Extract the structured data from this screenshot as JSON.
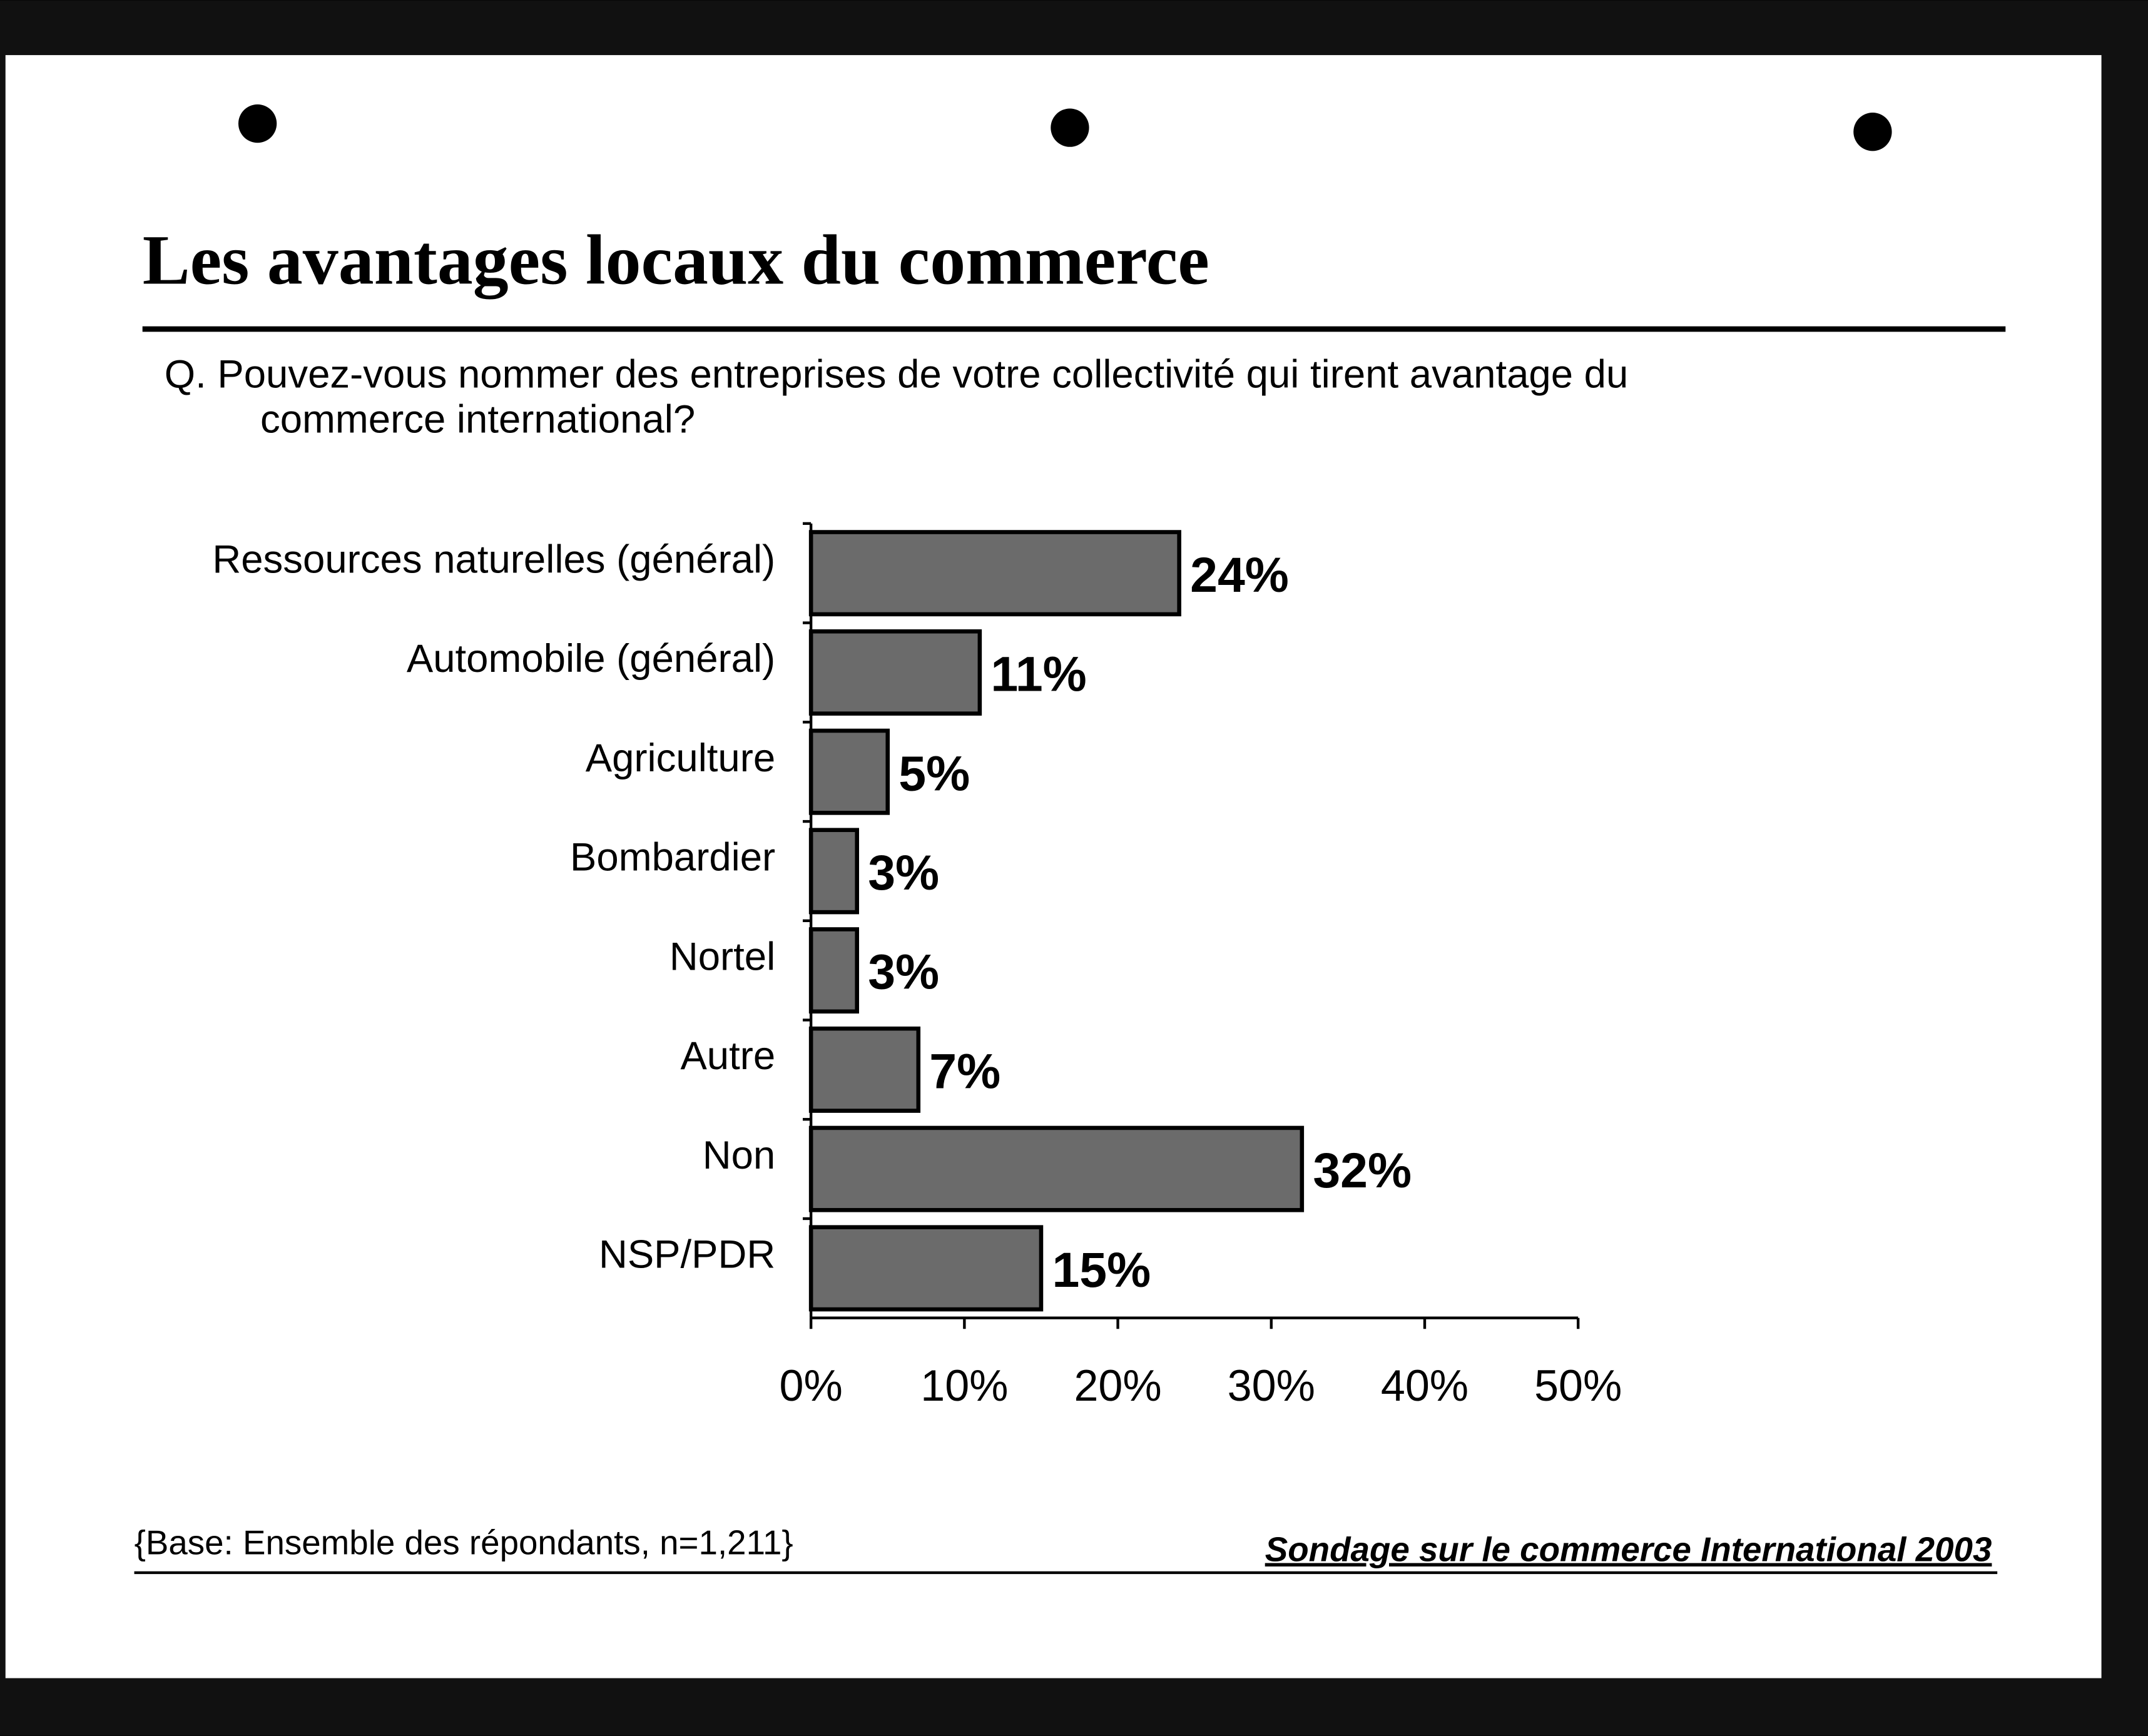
{
  "chart_data": {
    "type": "bar",
    "orientation": "horizontal",
    "title": "Les avantages locaux du commerce",
    "question": [
      "Q. Pouvez-vous nommer des entreprises de votre collectivité qui tirent avantage du",
      "commerce international?"
    ],
    "categories": [
      "Ressources naturelles (général)",
      "Automobile (général)",
      "Agriculture",
      "Bombardier",
      "Nortel",
      "Autre",
      "Non",
      "NSP/PDR"
    ],
    "values": [
      24,
      11,
      5,
      3,
      3,
      7,
      32,
      15
    ],
    "value_labels": [
      "24%",
      "11%",
      "5%",
      "3%",
      "3%",
      "7%",
      "32%",
      "15%"
    ],
    "color": "#6b6b6b",
    "xlim": [
      0,
      50
    ],
    "xticks": [
      {
        "value": 0,
        "label": "0%"
      },
      {
        "value": 10,
        "label": "10%"
      },
      {
        "value": 20,
        "label": "20%"
      },
      {
        "value": 30,
        "label": "30%"
      },
      {
        "value": 40,
        "label": "40%"
      },
      {
        "value": 50,
        "label": "50%"
      }
    ],
    "base_note": "{Base: Ensemble des répondants, n=1,211}",
    "source": "Sondage sur le commerce International 2003"
  }
}
